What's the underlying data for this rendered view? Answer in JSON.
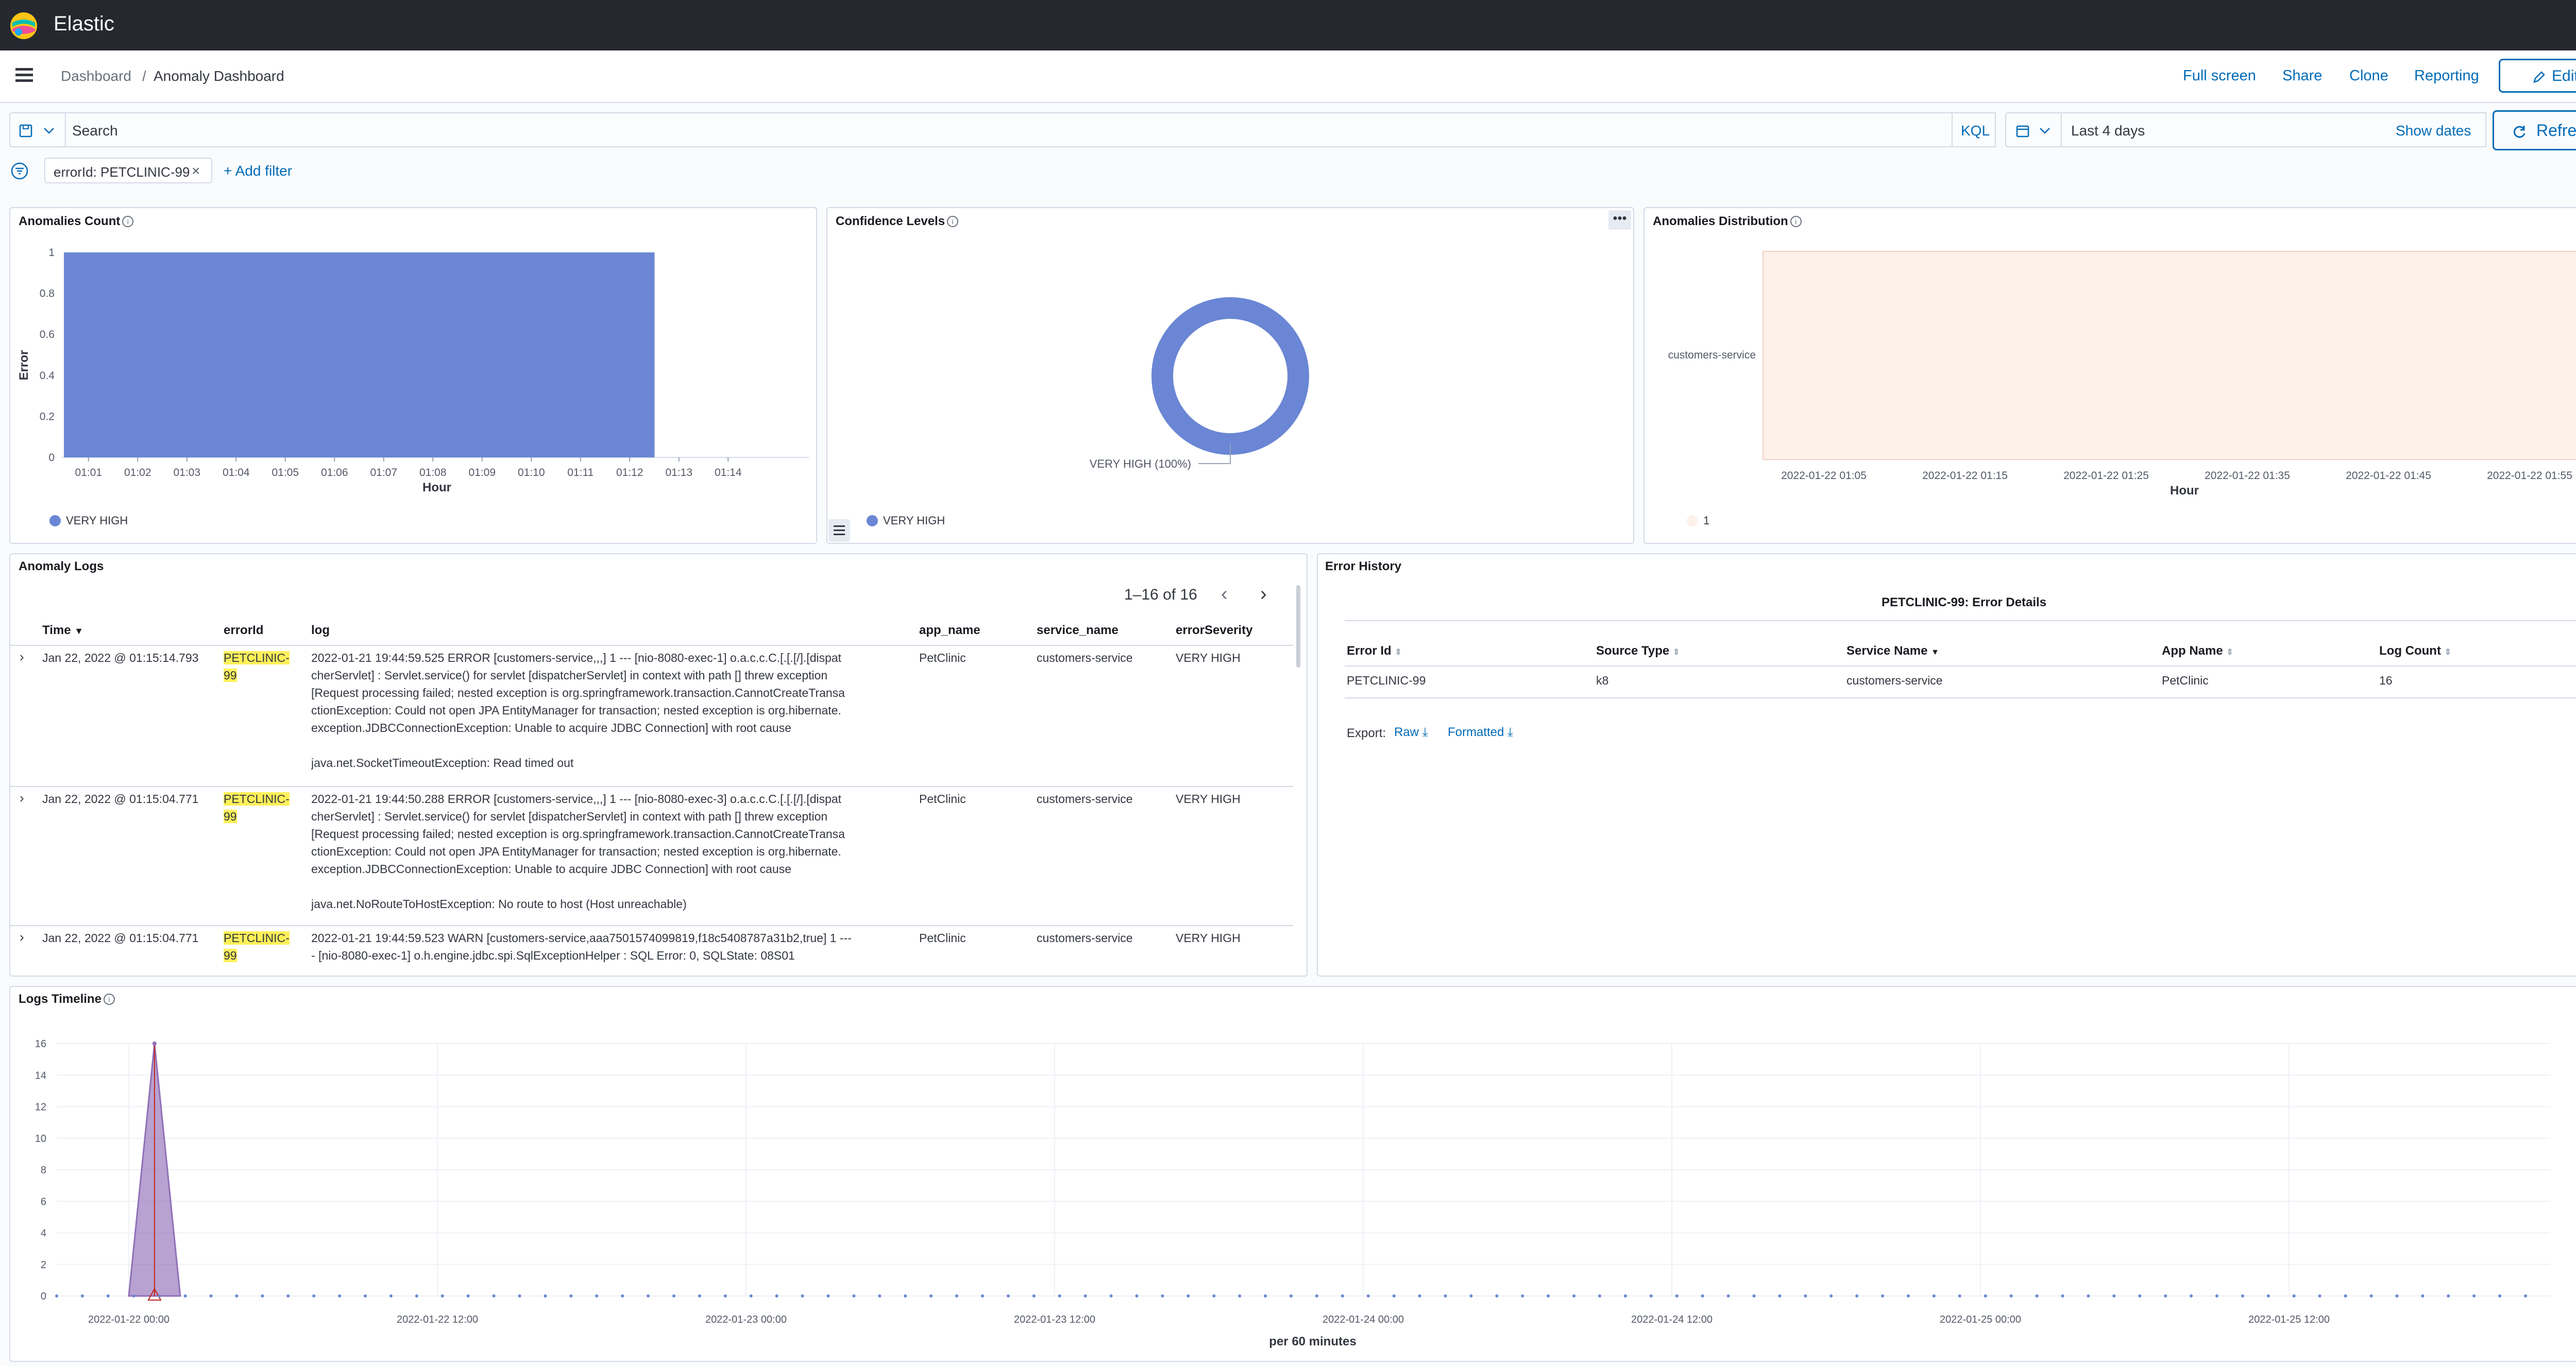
{
  "app": {
    "title": "Elastic"
  },
  "breadcrumbs": [
    "Dashboard",
    "Anomaly Dashboard"
  ],
  "header_actions": {
    "fullscreen": "Full screen",
    "share": "Share",
    "clone": "Clone",
    "reporting": "Reporting",
    "edit": "Edit"
  },
  "query": {
    "placeholder": "Search",
    "value": "",
    "kql": "KQL",
    "time_range": "Last 4 days",
    "show_dates": "Show dates",
    "refresh": "Refresh"
  },
  "filters": {
    "active": [
      "errorId: PETCLINIC-99"
    ],
    "add": "+ Add filter"
  },
  "panels": {
    "anomalies_count": {
      "title": "Anomalies Count",
      "ylabel": "Error",
      "xlabel": "Hour",
      "yticks": [
        "1",
        "0.8",
        "0.6",
        "0.4",
        "0.2",
        "0"
      ],
      "xticks": [
        "01:01",
        "01:02",
        "01:03",
        "01:04",
        "01:05",
        "01:06",
        "01:07",
        "01:08",
        "01:09",
        "01:10",
        "01:11",
        "01:12",
        "01:13",
        "01:14"
      ],
      "legend": "VERY HIGH"
    },
    "confidence_levels": {
      "title": "Confidence Levels",
      "slice_label": "VERY HIGH (100%)",
      "legend": "VERY HIGH"
    },
    "anomalies_distribution": {
      "title": "Anomalies Distribution",
      "ycategory": "customers-service",
      "xticks": [
        "2022-01-22 01:05",
        "2022-01-22 01:15",
        "2022-01-22 01:25",
        "2022-01-22 01:35",
        "2022-01-22 01:45",
        "2022-01-22 01:55"
      ],
      "xlabel": "Hour",
      "legend": "1"
    },
    "anomaly_logs": {
      "title": "Anomaly Logs",
      "pagination": "1–16 of 16",
      "columns": [
        "Time",
        "errorId",
        "log",
        "app_name",
        "service_name",
        "errorSeverity"
      ],
      "rows": [
        {
          "time": "Jan 22, 2022 @ 01:15:14.793",
          "error_id": [
            "PETCLINIC-",
            "99"
          ],
          "log": [
            "2022-01-21 19:44:59.525 ERROR [customers-service,,,] 1 --- [nio-8080-exec-1] o.a.c.c.C.[.[.[/].[dispat",
            "cherServlet]     : Servlet.service() for servlet [dispatcherServlet] in context with path [] threw exception",
            "[Request processing failed; nested exception is org.springframework.transaction.CannotCreateTransa",
            "ctionException: Could not open JPA EntityManager for transaction; nested exception is org.hibernate.",
            "exception.JDBCConnectionException: Unable to acquire JDBC Connection] with root cause",
            "",
            "java.net.SocketTimeoutException: Read timed out"
          ],
          "app_name": "PetClinic",
          "service_name": "customers-service",
          "severity": "VERY HIGH"
        },
        {
          "time": "Jan 22, 2022 @ 01:15:04.771",
          "error_id": [
            "PETCLINIC-",
            "99"
          ],
          "log": [
            "2022-01-21 19:44:50.288 ERROR [customers-service,,,] 1 --- [nio-8080-exec-3] o.a.c.c.C.[.[.[/].[dispat",
            "cherServlet]     : Servlet.service() for servlet [dispatcherServlet] in context with path [] threw exception",
            "[Request processing failed; nested exception is org.springframework.transaction.CannotCreateTransa",
            "ctionException: Could not open JPA EntityManager for transaction; nested exception is org.hibernate.",
            "exception.JDBCConnectionException: Unable to acquire JDBC Connection] with root cause",
            "",
            "java.net.NoRouteToHostException: No route to host (Host unreachable)"
          ],
          "app_name": "PetClinic",
          "service_name": "customers-service",
          "severity": "VERY HIGH"
        },
        {
          "time": "Jan 22, 2022 @ 01:15:04.771",
          "error_id": [
            "PETCLINIC-",
            "99"
          ],
          "log": [
            "2022-01-21 19:44:59.523  WARN [customers-service,aaa7501574099819,f18c5408787a31b2,true] 1 ---",
            "- [nio-8080-exec-1] o.h.engine.jdbc.spi.SqlExceptionHelper   : SQL Error: 0, SQLState: 08S01"
          ],
          "app_name": "PetClinic",
          "service_name": "customers-service",
          "severity": "VERY HIGH"
        }
      ]
    },
    "error_history": {
      "title": "Error History",
      "subtitle": "PETCLINIC-99: Error Details",
      "columns": [
        "Error Id",
        "Source Type",
        "Service Name",
        "App Name",
        "Log Count"
      ],
      "rows": [
        [
          "PETCLINIC-99",
          "k8",
          "customers-service",
          "PetClinic",
          "16"
        ]
      ],
      "export_label": "Export:",
      "raw": "Raw",
      "formatted": "Formatted"
    },
    "logs_timeline": {
      "title": "Logs Timeline",
      "yticks": [
        "16",
        "14",
        "12",
        "10",
        "8",
        "6",
        "4",
        "2",
        "0"
      ],
      "xticks": [
        "2022-01-22 00:00",
        "2022-01-22 12:00",
        "2022-01-23 00:00",
        "2022-01-23 12:00",
        "2022-01-24 00:00",
        "2022-01-24 12:00",
        "2022-01-25 00:00",
        "2022-01-25 12:00"
      ],
      "xlabel": "per 60 minutes"
    }
  },
  "chart_data": [
    {
      "type": "bar",
      "title": "Anomalies Count",
      "categories": [
        "01:01",
        "01:02",
        "01:03",
        "01:04",
        "01:05",
        "01:06",
        "01:07",
        "01:08",
        "01:09",
        "01:10",
        "01:11",
        "01:12"
      ],
      "series": [
        {
          "name": "VERY HIGH",
          "values": [
            1,
            1,
            1,
            1,
            1,
            1,
            1,
            1,
            1,
            1,
            1,
            1
          ]
        }
      ],
      "xlabel": "Hour",
      "ylabel": "Error",
      "ylim": [
        0,
        1
      ],
      "color": "#6a86d4"
    },
    {
      "type": "pie",
      "title": "Confidence Levels",
      "labels": [
        "VERY HIGH"
      ],
      "values": [
        100
      ],
      "color": "#6a86d4"
    },
    {
      "type": "heatmap",
      "title": "Anomalies Distribution",
      "y": [
        "customers-service"
      ],
      "xlabel": "Hour",
      "values": [
        [
          1
        ]
      ],
      "color": "#fdf1ea"
    },
    {
      "type": "area",
      "title": "Logs Timeline",
      "xlabel": "per 60 minutes",
      "ylim": [
        0,
        16
      ],
      "x": [
        "2022-01-22 00:00",
        "2022-01-22 01:00",
        "2022-01-22 02:00"
      ],
      "values": [
        0,
        16,
        0
      ],
      "color": "#9170b8"
    }
  ]
}
